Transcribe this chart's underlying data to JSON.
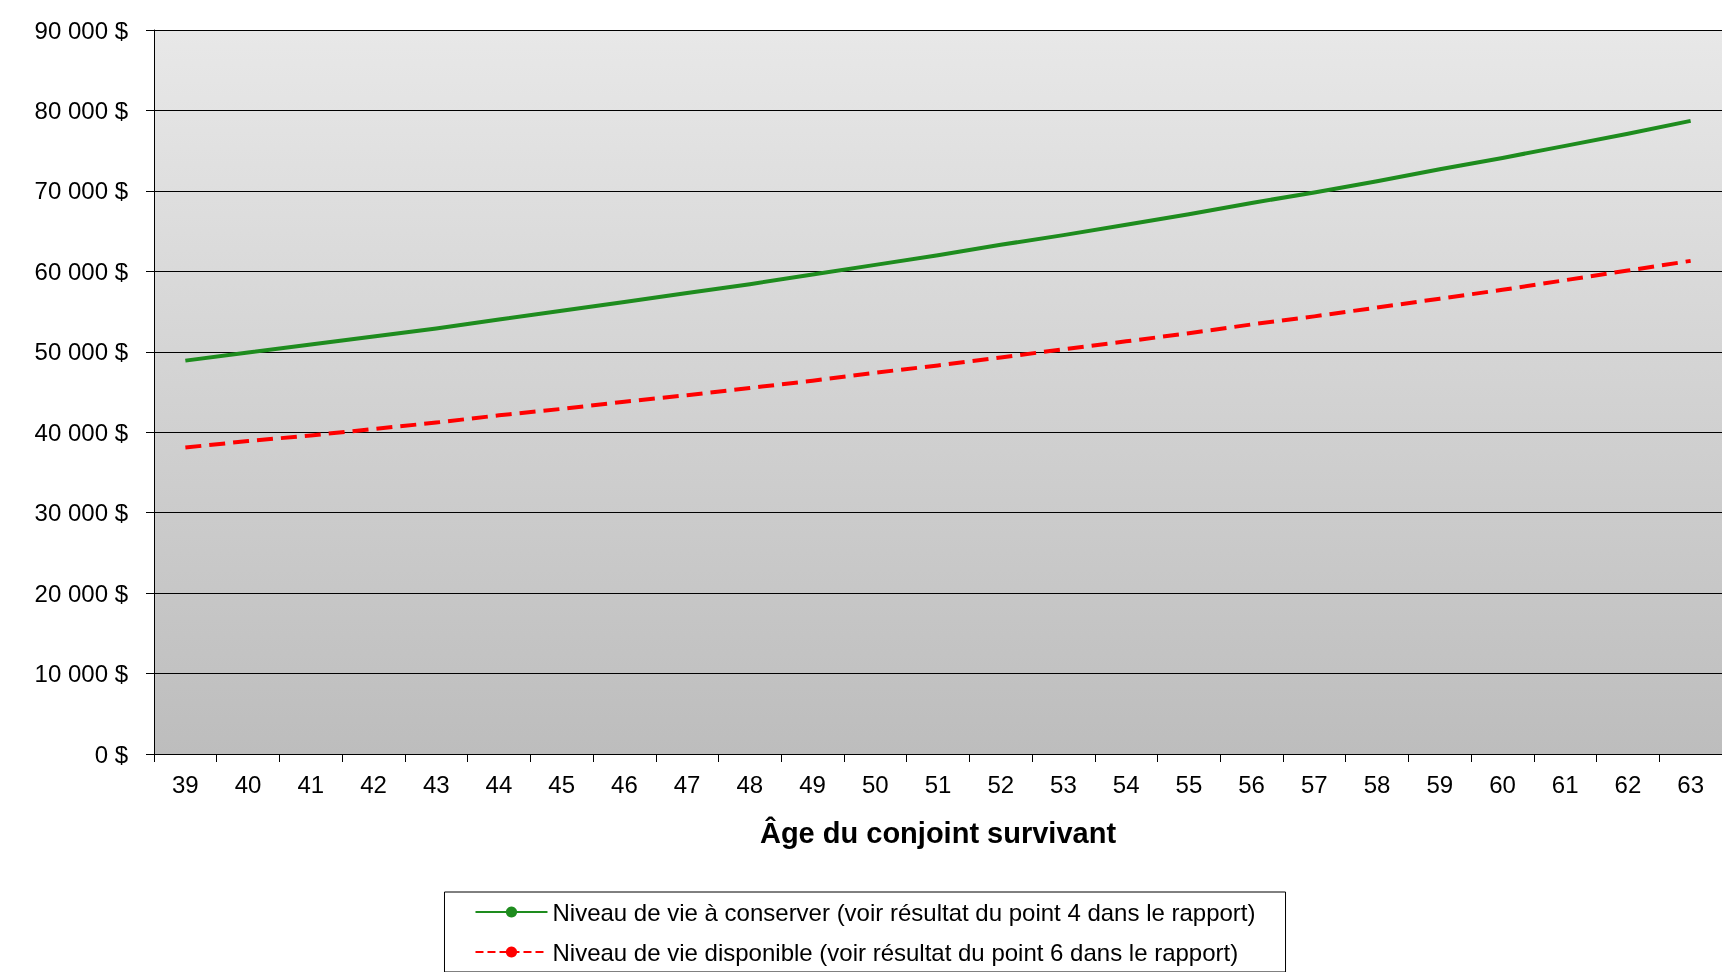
{
  "chart_data": {
    "type": "line",
    "xlabel": "Âge du conjoint survivant",
    "categories": [
      "39",
      "40",
      "41",
      "42",
      "43",
      "44",
      "45",
      "46",
      "47",
      "48",
      "49",
      "50",
      "51",
      "52",
      "53",
      "54",
      "55",
      "56",
      "57",
      "58",
      "59",
      "60",
      "61",
      "62",
      "63"
    ],
    "series": [
      {
        "name": "Niveau de vie à conserver (voir résultat du point 4 dans le rapport)",
        "color": "#1e8c1e",
        "line_style": "solid",
        "values": [
          48900,
          49900,
          50900,
          51900,
          52900,
          54000,
          55100,
          56200,
          57300,
          58400,
          59600,
          60800,
          62000,
          63300,
          64500,
          65800,
          67100,
          68500,
          69800,
          71200,
          72700,
          74100,
          75600,
          77100,
          78700
        ]
      },
      {
        "name": "Niveau de vie disponible (voir résultat du point 6 dans le rapport)",
        "color": "#ff0000",
        "line_style": "dashed",
        "values": [
          38100,
          38900,
          39600,
          40400,
          41200,
          42100,
          42900,
          43800,
          44600,
          45500,
          46400,
          47400,
          48300,
          49300,
          50300,
          51300,
          52300,
          53400,
          54400,
          55500,
          56600,
          57700,
          58900,
          60100,
          61300
        ]
      }
    ],
    "ylim": [
      0,
      90000
    ],
    "yticks": [
      {
        "value": 0,
        "label": "0 $"
      },
      {
        "value": 10000,
        "label": "10 000 $"
      },
      {
        "value": 20000,
        "label": "20 000 $"
      },
      {
        "value": 30000,
        "label": "30 000 $"
      },
      {
        "value": 40000,
        "label": "40 000 $"
      },
      {
        "value": 50000,
        "label": "50 000 $"
      },
      {
        "value": 60000,
        "label": "60 000 $"
      },
      {
        "value": 70000,
        "label": "70 000 $"
      },
      {
        "value": 80000,
        "label": "80 000 $"
      },
      {
        "value": 90000,
        "label": "90 000 $"
      }
    ],
    "grid": "y",
    "legend": "bottom",
    "marker": "none"
  }
}
